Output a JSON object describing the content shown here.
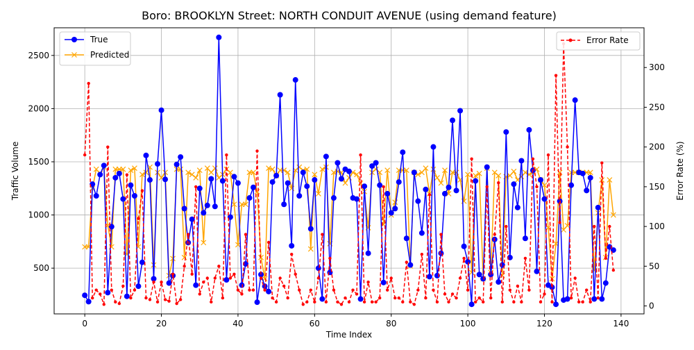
{
  "chart_data": {
    "type": "line",
    "title": "Boro: BROOKLYN Street: NORTH CONDUIT AVENUE (using demand feature)",
    "xlabel": "Time Index",
    "ylabel_left": "Traffic Volume",
    "ylabel_right": "Error Rate (%)",
    "xlim": [
      -8,
      146
    ],
    "ylim_left": [
      70,
      2760
    ],
    "ylim_right": [
      -10,
      350
    ],
    "x_ticks": [
      0,
      20,
      40,
      60,
      80,
      100,
      120,
      140
    ],
    "y_left_ticks": [
      500,
      1000,
      1500,
      2000,
      2500
    ],
    "y_right_ticks": [
      0,
      50,
      100,
      150,
      200,
      250,
      300
    ],
    "grid": true,
    "legend_left": "top-left",
    "legend_right": "top-right",
    "colors": {
      "true": "#0000ff",
      "predicted": "#ffa500",
      "error": "#ff0000"
    },
    "series": [
      {
        "name": "True",
        "axis": "left",
        "style": "line-circle",
        "values": [
          245,
          185,
          1290,
          1180,
          1380,
          1465,
          270,
          890,
          1350,
          1390,
          1150,
          235,
          1280,
          1180,
          330,
          555,
          1560,
          1330,
          400,
          1480,
          1985,
          1335,
          360,
          430,
          1475,
          1545,
          1060,
          740,
          960,
          340,
          1250,
          1020,
          1090,
          1340,
          1080,
          2670,
          1320,
          390,
          980,
          1360,
          1300,
          340,
          540,
          1160,
          1260,
          180,
          440,
          330,
          280,
          1310,
          1370,
          2130,
          1100,
          1300,
          710,
          2270,
          1180,
          1400,
          1270,
          870,
          1330,
          500,
          210,
          1550,
          460,
          1160,
          1490,
          1340,
          1430,
          1410,
          1160,
          1150,
          210,
          1270,
          640,
          1460,
          1490,
          1280,
          365,
          1200,
          1020,
          1060,
          1310,
          1590,
          780,
          530,
          1400,
          1130,
          830,
          1240,
          420,
          1640,
          430,
          640,
          1200,
          1260,
          1890,
          1230,
          1980,
          705,
          560,
          160,
          1320,
          440,
          400,
          1450,
          440,
          770,
          370,
          530,
          1780,
          600,
          1290,
          1070,
          1510,
          780,
          1800,
          1420,
          470,
          1330,
          1150,
          340,
          320,
          160,
          1130,
          200,
          210,
          1280,
          2080,
          1400,
          1390,
          1230,
          1350,
          210,
          1070,
          210,
          360,
          700,
          670
        ]
      },
      {
        "name": "Predicted",
        "axis": "left",
        "style": "line-x",
        "values": [
          700,
          700,
          1250,
          1430,
          1390,
          1450,
          900,
          700,
          1430,
          1430,
          1430,
          630,
          1420,
          1440,
          700,
          1380,
          1400,
          1450,
          530,
          1400,
          1350,
          1400,
          430,
          590,
          1430,
          1430,
          600,
          1400,
          1380,
          1350,
          1420,
          740,
          1440,
          1400,
          1440,
          1350,
          1380,
          1430,
          1400,
          1100,
          720,
          1100,
          1100,
          1400,
          1400,
          1220,
          600,
          400,
          1440,
          1430,
          1370,
          1420,
          1420,
          1400,
          1250,
          1420,
          1450,
          1420,
          1430,
          680,
          1380,
          1200,
          1430,
          1450,
          730,
          1400,
          1410,
          1400,
          1300,
          1350,
          1400,
          1380,
          1300,
          1220,
          880,
          1400,
          1430,
          1400,
          910,
          1420,
          1000,
          1120,
          1420,
          1420,
          1420,
          520,
          1400,
          1380,
          1400,
          1440,
          1200,
          1430,
          1350,
          1300,
          1420,
          1200,
          1400,
          1400,
          1330,
          1130,
          1380,
          460,
          1370,
          1390,
          400,
          1440,
          460,
          1400,
          1370,
          430,
          1360,
          1370,
          1410,
          1330,
          1360,
          1400,
          1380,
          1400,
          1430,
          1330,
          1280,
          880,
          400,
          730,
          1400,
          860,
          900,
          1400,
          1400,
          1400,
          1400,
          1400,
          1400,
          480,
          1020,
          1330,
          600,
          1330,
          1000
        ]
      },
      {
        "name": "Error Rate",
        "axis": "right",
        "style": "dash-dot",
        "values": [
          190,
          280,
          10,
          20,
          15,
          2,
          200,
          20,
          5,
          3,
          25,
          165,
          10,
          20,
          110,
          145,
          10,
          8,
          30,
          5,
          30,
          8,
          6,
          40,
          3,
          8,
          50,
          90,
          40,
          150,
          15,
          30,
          35,
          5,
          35,
          50,
          10,
          190,
          35,
          40,
          20,
          15,
          90,
          20,
          20,
          195,
          35,
          20,
          80,
          10,
          5,
          35,
          25,
          10,
          65,
          40,
          20,
          2,
          5,
          20,
          5,
          35,
          90,
          5,
          60,
          20,
          5,
          2,
          10,
          5,
          20,
          15,
          190,
          5,
          30,
          5,
          5,
          10,
          150,
          20,
          35,
          10,
          10,
          5,
          55,
          5,
          2,
          20,
          65,
          10,
          140,
          20,
          5,
          90,
          15,
          5,
          15,
          10,
          35,
          60,
          20,
          185,
          5,
          10,
          5,
          150,
          10,
          90,
          155,
          5,
          100,
          20,
          5,
          25,
          5,
          60,
          20,
          185,
          150,
          5,
          15,
          190,
          5,
          290,
          105,
          330,
          200,
          10,
          35,
          5,
          5,
          20,
          5,
          100,
          10,
          180,
          60,
          100,
          45
        ]
      }
    ]
  }
}
